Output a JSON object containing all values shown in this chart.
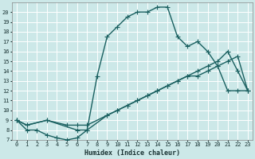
{
  "xlabel": "Humidex (Indice chaleur)",
  "xlim": [
    -0.5,
    23.5
  ],
  "ylim": [
    7,
    21
  ],
  "yticks": [
    7,
    8,
    9,
    10,
    11,
    12,
    13,
    14,
    15,
    16,
    17,
    18,
    19,
    20
  ],
  "xticks": [
    0,
    1,
    2,
    3,
    4,
    5,
    6,
    7,
    8,
    9,
    10,
    11,
    12,
    13,
    14,
    15,
    16,
    17,
    18,
    19,
    20,
    21,
    22,
    23
  ],
  "bg_color": "#cce8e8",
  "grid_color": "#b8d8d8",
  "line_color": "#1a6060",
  "line1_x": [
    0,
    1,
    2,
    3,
    4,
    5,
    6,
    7,
    8,
    9,
    10,
    11,
    12,
    13,
    14,
    15,
    16,
    17,
    18,
    19,
    20,
    21,
    22,
    23
  ],
  "line1_y": [
    9.0,
    8.0,
    8.0,
    7.5,
    7.2,
    7.0,
    7.2,
    8.0,
    13.5,
    17.5,
    18.5,
    19.5,
    20.0,
    20.0,
    20.5,
    20.5,
    17.5,
    16.5,
    17.0,
    16.0,
    14.5,
    12.0,
    12.0,
    12.0
  ],
  "line2_x": [
    0,
    1,
    3,
    5,
    6,
    7,
    9,
    10,
    11,
    12,
    13,
    14,
    15,
    16,
    17,
    18,
    19,
    20,
    21,
    22,
    23
  ],
  "line2_y": [
    9.0,
    8.5,
    9.0,
    8.5,
    8.5,
    8.5,
    9.5,
    10.0,
    10.5,
    11.0,
    11.5,
    12.0,
    12.5,
    13.0,
    13.5,
    13.5,
    14.0,
    14.5,
    15.0,
    15.5,
    12.0
  ],
  "line3_x": [
    0,
    1,
    3,
    6,
    7,
    9,
    10,
    11,
    12,
    13,
    14,
    15,
    16,
    17,
    18,
    19,
    20,
    21,
    22,
    23
  ],
  "line3_y": [
    9.0,
    8.5,
    9.0,
    8.0,
    8.0,
    9.5,
    10.0,
    10.5,
    11.0,
    11.5,
    12.0,
    12.5,
    13.0,
    13.5,
    14.0,
    14.5,
    15.0,
    16.0,
    14.0,
    12.0
  ],
  "marker_size": 2.5,
  "linewidth": 1.0
}
